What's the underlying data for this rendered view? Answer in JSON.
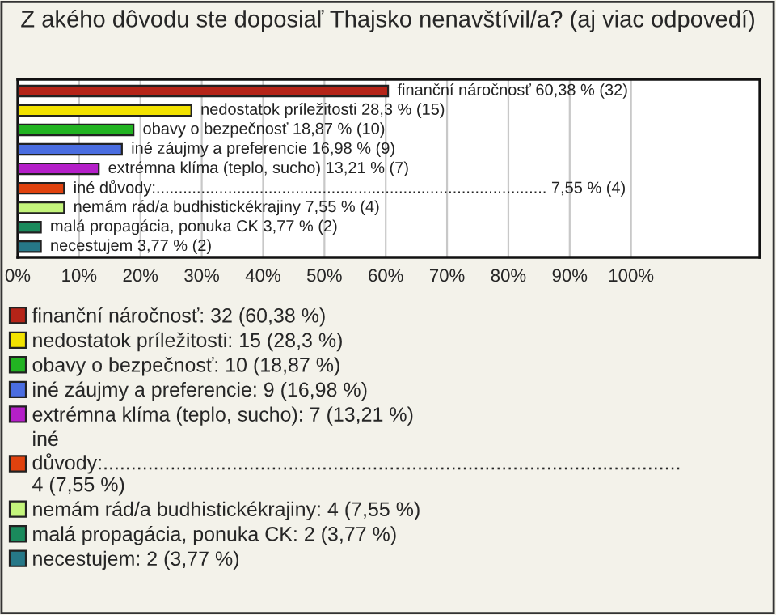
{
  "chart_data": {
    "type": "bar",
    "orientation": "horizontal",
    "title": "Z akého dôvodu ste doposiaľ Thajsko nenavštívil/a? (aj viac odpovedí)",
    "categories": [
      null,
      null,
      null,
      null,
      null,
      null,
      null,
      null,
      null
    ],
    "series": [
      {
        "name": "finanční náročnosť: 32 (60,38 %)",
        "color": "#b52418",
        "values": [
          60.38,
          null,
          null,
          null,
          null,
          null,
          null,
          null,
          null
        ],
        "value_labels": [
          "finanční náročnosť 60,38 % (32)",
          null,
          null,
          null,
          null,
          null,
          null,
          null,
          null
        ]
      },
      {
        "name": "nedostatok príležitosti: 15 (28,3 %)",
        "color": "#f2e200",
        "values": [
          null,
          28.3,
          null,
          null,
          null,
          null,
          null,
          null,
          null
        ],
        "value_labels": [
          null,
          "nedostatok príležitosti 28,3 % (15)",
          null,
          null,
          null,
          null,
          null,
          null,
          null
        ]
      },
      {
        "name": "obavy o bezpečnosť: 10 (18,87 %)",
        "color": "#22b322",
        "values": [
          null,
          null,
          18.87,
          null,
          null,
          null,
          null,
          null,
          null
        ],
        "value_labels": [
          null,
          null,
          "obavy o bezpečnosť 18,87 % (10)",
          null,
          null,
          null,
          null,
          null,
          null
        ]
      },
      {
        "name": "iné záujmy a preferencie: 9 (16,98 %)",
        "color": "#4a6de0",
        "values": [
          null,
          null,
          null,
          16.98,
          null,
          null,
          null,
          null,
          null
        ],
        "value_labels": [
          null,
          null,
          null,
          "iné záujmy a preferencie 16,98 % (9)",
          null,
          null,
          null,
          null,
          null
        ]
      },
      {
        "name": "extrémna klíma (teplo, sucho): 7 (13,21 %)",
        "color": "#b41fc8",
        "values": [
          null,
          null,
          null,
          null,
          13.21,
          null,
          null,
          null,
          null
        ],
        "value_labels": [
          null,
          null,
          null,
          null,
          "extrémna klíma (teplo, sucho) 13,21 % (7)",
          null,
          null,
          null,
          null
        ]
      },
      {
        "name": "iné\ndůvody:.......................................................................................................\n4 (7,55 %)",
        "color": "#e0420e",
        "values": [
          null,
          null,
          null,
          null,
          null,
          7.55,
          null,
          null,
          null
        ],
        "value_labels": [
          null,
          null,
          null,
          null,
          null,
          "iné důvody:....................................................................................... 7,55 % (4)",
          null,
          null,
          null
        ]
      },
      {
        "name": "nemám rád/a budhistickékrajiny: 4 (7,55 %)",
        "color": "#c4f57c",
        "values": [
          null,
          null,
          null,
          null,
          null,
          null,
          7.55,
          null,
          null
        ],
        "value_labels": [
          null,
          null,
          null,
          null,
          null,
          null,
          "nemám rád/a budhistickékrajiny 7,55 % (4)",
          null,
          null
        ]
      },
      {
        "name": "malá propagácia, ponuka CK: 2 (3,77 %)",
        "color": "#1a8a5c",
        "values": [
          null,
          null,
          null,
          null,
          null,
          null,
          null,
          3.77,
          null
        ],
        "value_labels": [
          null,
          null,
          null,
          null,
          null,
          null,
          null,
          "malá propagácia, ponuka CK 3,77 % (2)",
          null
        ]
      },
      {
        "name": "necestujem: 2 (3,77 %)",
        "color": "#267888",
        "values": [
          null,
          null,
          null,
          null,
          null,
          null,
          null,
          null,
          3.77
        ],
        "value_labels": [
          null,
          null,
          null,
          null,
          null,
          null,
          null,
          null,
          "necestujem 3,77 % (2)"
        ]
      }
    ],
    "xlim": [
      0,
      121
    ],
    "xticks": [
      {
        "value": 0,
        "label": "0%"
      },
      {
        "value": 10,
        "label": "10%"
      },
      {
        "value": 20,
        "label": "20%"
      },
      {
        "value": 30,
        "label": "30%"
      },
      {
        "value": 40,
        "label": "40%"
      },
      {
        "value": 50,
        "label": "50%"
      },
      {
        "value": 60,
        "label": "60%"
      },
      {
        "value": 70,
        "label": "70%"
      },
      {
        "value": 80,
        "label": "80%"
      },
      {
        "value": 90,
        "label": "90%"
      },
      {
        "value": 100,
        "label": "100%"
      }
    ],
    "grid": "x",
    "legend": "bottom"
  }
}
